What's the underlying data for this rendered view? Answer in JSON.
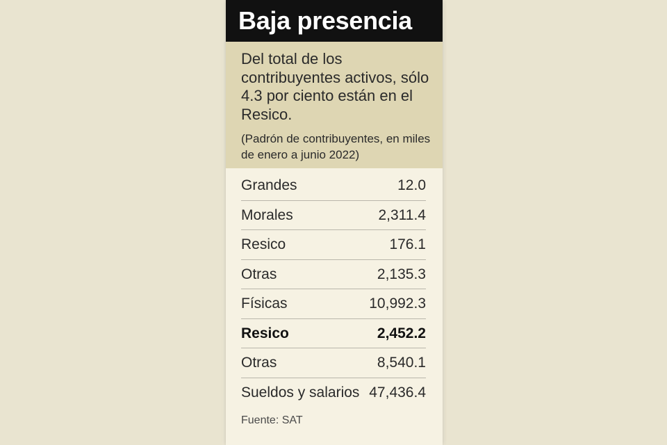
{
  "chart_data": {
    "type": "table",
    "title": "Baja presencia",
    "subtitle": "Del total de los contribuyentes activos, sólo 4.3 por ciento están en el Resico.",
    "note": "(Padrón de contribuyentes, en miles de enero a junio 2022)",
    "rows": [
      {
        "label": "Grandes",
        "value": "12.0",
        "bold": false
      },
      {
        "label": "Morales",
        "value": "2,311.4",
        "bold": false
      },
      {
        "label": "Resico",
        "value": "176.1",
        "bold": false
      },
      {
        "label": "Otras",
        "value": "2,135.3",
        "bold": false
      },
      {
        "label": "Físicas",
        "value": "10,992.3",
        "bold": false
      },
      {
        "label": "Resico",
        "value": "2,452.2",
        "bold": true
      },
      {
        "label": "Otras",
        "value": "8,540.1",
        "bold": false
      },
      {
        "label": "Sueldos y salarios",
        "value": "47,436.4",
        "bold": false
      }
    ],
    "source": "Fuente: SAT"
  },
  "colors": {
    "title_bar": "#111111",
    "intro_background": "#ded6b3",
    "panel_background": "#f6f2e3",
    "divider": "#b9b6ab"
  }
}
